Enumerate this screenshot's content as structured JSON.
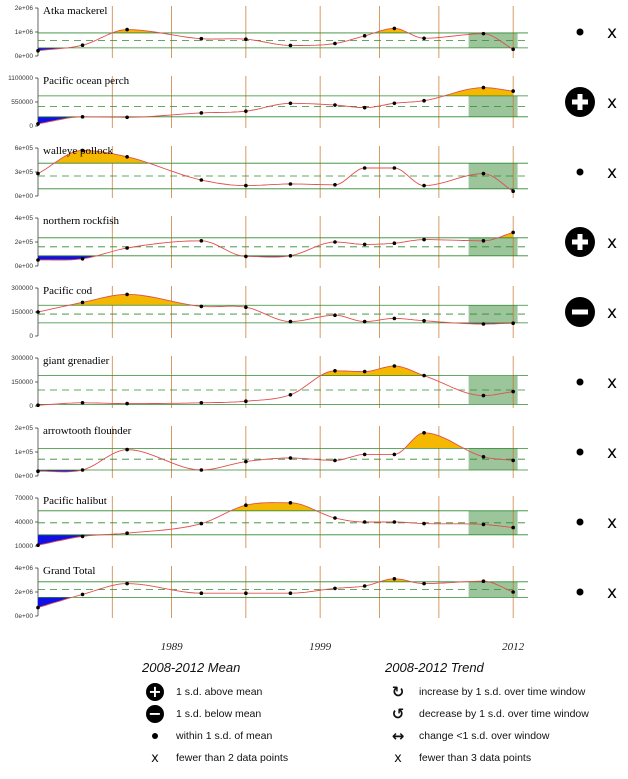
{
  "chart_data": {
    "type": "line",
    "x_labels": [
      "1989",
      "1999",
      "2012"
    ],
    "recent_window": "2008-2012",
    "colors": {
      "above": "#f5b800",
      "below": "#1010e6",
      "line": "#e05050",
      "window": "#9cc59c",
      "band": "#2f8a2f",
      "vline": "#c87020"
    },
    "panels": [
      {
        "name": "Atka mackerel",
        "yticks": [
          "0e+00",
          "1e+06",
          "2e+06"
        ],
        "ymax": 2000000,
        "x": [
          1980,
          1983,
          1986,
          1991,
          1994,
          1997,
          2000,
          2002,
          2004,
          2006,
          2010,
          2012
        ],
        "y": [
          220000,
          450000,
          1100000,
          720000,
          700000,
          440000,
          520000,
          840000,
          1150000,
          740000,
          930000,
          280000
        ],
        "mean": 650000,
        "sd": 310000,
        "mean_symbol": "dot",
        "trend_symbol": "x"
      },
      {
        "name": "Pacific ocean perch",
        "yticks": [
          "0",
          "550000",
          "1100000"
        ],
        "ymax": 1100000,
        "x": [
          1980,
          1983,
          1986,
          1991,
          1994,
          1997,
          2000,
          2002,
          2004,
          2006,
          2010,
          2012
        ],
        "y": [
          50000,
          210000,
          200000,
          300000,
          340000,
          520000,
          480000,
          420000,
          520000,
          580000,
          880000,
          800000
        ],
        "mean": 450000,
        "sd": 240000,
        "mean_symbol": "plus",
        "trend_symbol": "x"
      },
      {
        "name": "walleye pollock",
        "yticks": [
          "0e+00",
          "3e+05",
          "6e+05"
        ],
        "ymax": 600000,
        "x": [
          1980,
          1983,
          1986,
          1991,
          1994,
          1997,
          2000,
          2002,
          2004,
          2006,
          2010,
          2012
        ],
        "y": [
          280000,
          570000,
          490000,
          200000,
          130000,
          150000,
          140000,
          350000,
          350000,
          130000,
          280000,
          60000
        ],
        "mean": 250000,
        "sd": 160000,
        "mean_symbol": "dot",
        "trend_symbol": "x"
      },
      {
        "name": "northern rockfish",
        "yticks": [
          "0e+00",
          "2e+05",
          "4e+05"
        ],
        "ymax": 400000,
        "x": [
          1980,
          1983,
          1986,
          1991,
          1994,
          1997,
          2000,
          2002,
          2004,
          2006,
          2010,
          2012
        ],
        "y": [
          50000,
          60000,
          150000,
          210000,
          80000,
          85000,
          200000,
          180000,
          190000,
          220000,
          210000,
          280000
        ],
        "mean": 160000,
        "sd": 75000,
        "mean_symbol": "plus",
        "trend_symbol": "x"
      },
      {
        "name": "Pacific cod",
        "yticks": [
          "0",
          "150000",
          "300000"
        ],
        "ymax": 300000,
        "x": [
          1980,
          1983,
          1986,
          1991,
          1994,
          1997,
          2000,
          2002,
          2004,
          2006,
          2010,
          2012
        ],
        "y": [
          150000,
          210000,
          260000,
          185000,
          180000,
          90000,
          130000,
          90000,
          110000,
          95000,
          75000,
          80000
        ],
        "mean": 137000,
        "sd": 55000,
        "mean_symbol": "minus",
        "trend_symbol": "x"
      },
      {
        "name": "giant grenadier",
        "yticks": [
          "0",
          "150000",
          "300000"
        ],
        "ymax": 300000,
        "x": [
          1980,
          1983,
          1986,
          1991,
          1994,
          1997,
          2000,
          2002,
          2004,
          2006,
          2010,
          2012
        ],
        "y": [
          5000,
          20000,
          15000,
          20000,
          30000,
          70000,
          220000,
          215000,
          250000,
          190000,
          65000,
          90000
        ],
        "mean": 100000,
        "sd": 90000,
        "mean_symbol": "dot",
        "trend_symbol": "x"
      },
      {
        "name": "arrowtooth flounder",
        "yticks": [
          "0e+00",
          "1e+05",
          "2e+05"
        ],
        "ymax": 200000,
        "x": [
          1980,
          1983,
          1986,
          1991,
          1994,
          1997,
          2000,
          2002,
          2004,
          2006,
          2010,
          2012
        ],
        "y": [
          20000,
          25000,
          110000,
          25000,
          60000,
          75000,
          65000,
          90000,
          90000,
          180000,
          80000,
          65000
        ],
        "mean": 70000,
        "sd": 45000,
        "mean_symbol": "dot",
        "trend_symbol": "x"
      },
      {
        "name": "Pacific halibut",
        "yticks": [
          "10000",
          "40000",
          "70000"
        ],
        "ymin": 10000,
        "ymax": 70000,
        "x": [
          1980,
          1983,
          1986,
          1991,
          1994,
          1997,
          2000,
          2002,
          2004,
          2006,
          2010,
          2012
        ],
        "y": [
          11000,
          22000,
          26000,
          38000,
          61000,
          64000,
          45000,
          40000,
          40000,
          38000,
          37000,
          33000
        ],
        "mean": 39000,
        "sd": 15000,
        "mean_symbol": "dot",
        "trend_symbol": "x"
      },
      {
        "name": "Grand Total",
        "yticks": [
          "0e+00",
          "2e+06",
          "4e+06"
        ],
        "ymax": 4000000,
        "x": [
          1980,
          1983,
          1986,
          1991,
          1994,
          1997,
          2000,
          2002,
          2004,
          2006,
          2010,
          2012
        ],
        "y": [
          700000,
          1800000,
          2700000,
          1900000,
          1900000,
          1900000,
          2300000,
          2500000,
          3100000,
          2700000,
          2900000,
          2000000
        ],
        "mean": 2200000,
        "sd": 650000,
        "mean_symbol": "dot",
        "trend_symbol": "x"
      }
    ]
  },
  "legend": {
    "mean_title": "2008-2012 Mean",
    "mean_items": [
      {
        "symbol": "+",
        "label": "1 s.d. above mean"
      },
      {
        "symbol": "−",
        "label": "1 s.d. below mean"
      },
      {
        "symbol": "dot",
        "label": "within 1 s.d. of mean"
      },
      {
        "symbol": "x",
        "label": "fewer than 2 data points"
      }
    ],
    "trend_title": "2008-2012 Trend",
    "trend_items": [
      {
        "symbol": "↻",
        "label": "increase by 1 s.d. over time window"
      },
      {
        "symbol": "↺",
        "label": "decrease by 1 s.d. over time window"
      },
      {
        "symbol": "↔",
        "label": "change <1 s.d. over window"
      },
      {
        "symbol": "x",
        "label": "fewer than 3 data points"
      }
    ]
  }
}
